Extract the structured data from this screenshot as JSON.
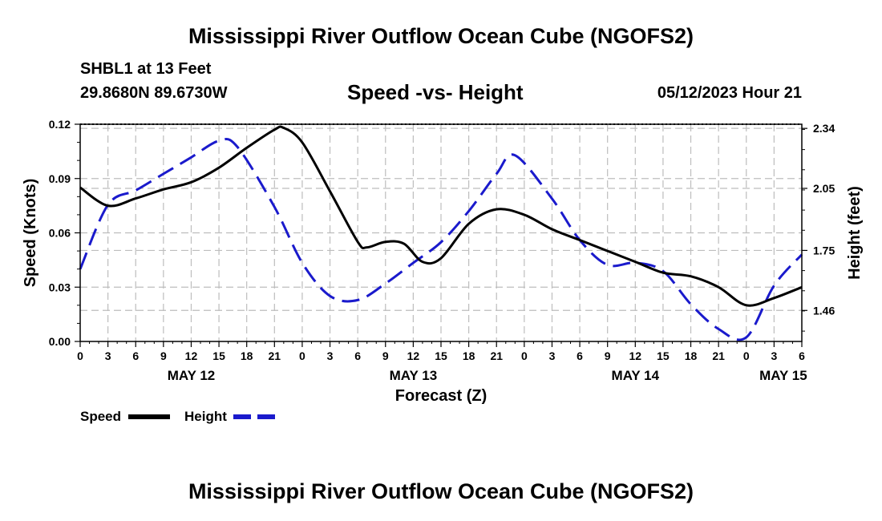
{
  "header": {
    "title": "Mississippi River Outflow Ocean Cube (NGOFS2)",
    "station": "SHBL1 at 13 Feet",
    "coords": "29.8680N  89.6730W",
    "subtitle": "Speed -vs- Height",
    "datetime": "05/12/2023 Hour 21"
  },
  "footer": {
    "title": "Mississippi River Outflow Ocean Cube (NGOFS2)"
  },
  "chart_data": {
    "type": "line",
    "xlabel": "Forecast (Z)",
    "ylabel_left": "Speed (Knots)",
    "ylabel_right": "Height (feet)",
    "x_range_hours": [
      0,
      78
    ],
    "hour_ticks": [
      "0",
      "3",
      "6",
      "9",
      "12",
      "15",
      "18",
      "21",
      "0",
      "3",
      "6",
      "9",
      "12",
      "15",
      "18",
      "21",
      "0",
      "3",
      "6",
      "9",
      "12",
      "15",
      "18",
      "21",
      "0",
      "3",
      "6"
    ],
    "day_labels": [
      {
        "label": "MAY 12",
        "hour": 12
      },
      {
        "label": "MAY 13",
        "hour": 36
      },
      {
        "label": "MAY 14",
        "hour": 60
      },
      {
        "label": "MAY 15",
        "hour": 76
      }
    ],
    "y_left": {
      "range": [
        0,
        0.12
      ],
      "ticks": [
        "0.00",
        "0.03",
        "0.06",
        "0.09",
        "0.12"
      ]
    },
    "y_right": {
      "range": [
        1.31,
        2.36
      ],
      "ticks": [
        "1.46",
        "1.75",
        "2.05",
        "2.34"
      ]
    },
    "series": [
      {
        "name": "Speed",
        "axis": "left",
        "color": "#000000",
        "dash": false,
        "x": [
          0,
          3,
          6,
          9,
          12,
          15,
          18,
          21,
          22,
          24,
          27,
          30,
          31,
          33,
          35,
          37,
          39,
          42,
          45,
          48,
          51,
          54,
          57,
          60,
          63,
          66,
          69,
          72,
          75,
          78
        ],
        "y": [
          0.085,
          0.075,
          0.079,
          0.084,
          0.088,
          0.096,
          0.107,
          0.117,
          0.118,
          0.11,
          0.083,
          0.055,
          0.052,
          0.055,
          0.054,
          0.044,
          0.046,
          0.065,
          0.073,
          0.07,
          0.062,
          0.056,
          0.05,
          0.044,
          0.038,
          0.036,
          0.03,
          0.02,
          0.024,
          0.03
        ]
      },
      {
        "name": "Height",
        "axis": "right",
        "color": "#1a1acc",
        "dash": true,
        "x": [
          0,
          3,
          6,
          9,
          12,
          15,
          17,
          21,
          24,
          27,
          30,
          33,
          36,
          39,
          42,
          45,
          47,
          51,
          54,
          57,
          60,
          63,
          66,
          69,
          72,
          75,
          78
        ],
        "y": [
          1.66,
          1.97,
          2.04,
          2.12,
          2.2,
          2.28,
          2.25,
          1.96,
          1.69,
          1.53,
          1.51,
          1.59,
          1.69,
          1.79,
          1.94,
          2.12,
          2.21,
          2.0,
          1.8,
          1.68,
          1.69,
          1.65,
          1.49,
          1.37,
          1.33,
          1.58,
          1.73
        ]
      }
    ],
    "legend": [
      {
        "label": "Speed",
        "color": "#000000",
        "dash": false
      },
      {
        "label": "Height",
        "color": "#1a1acc",
        "dash": true
      }
    ]
  }
}
